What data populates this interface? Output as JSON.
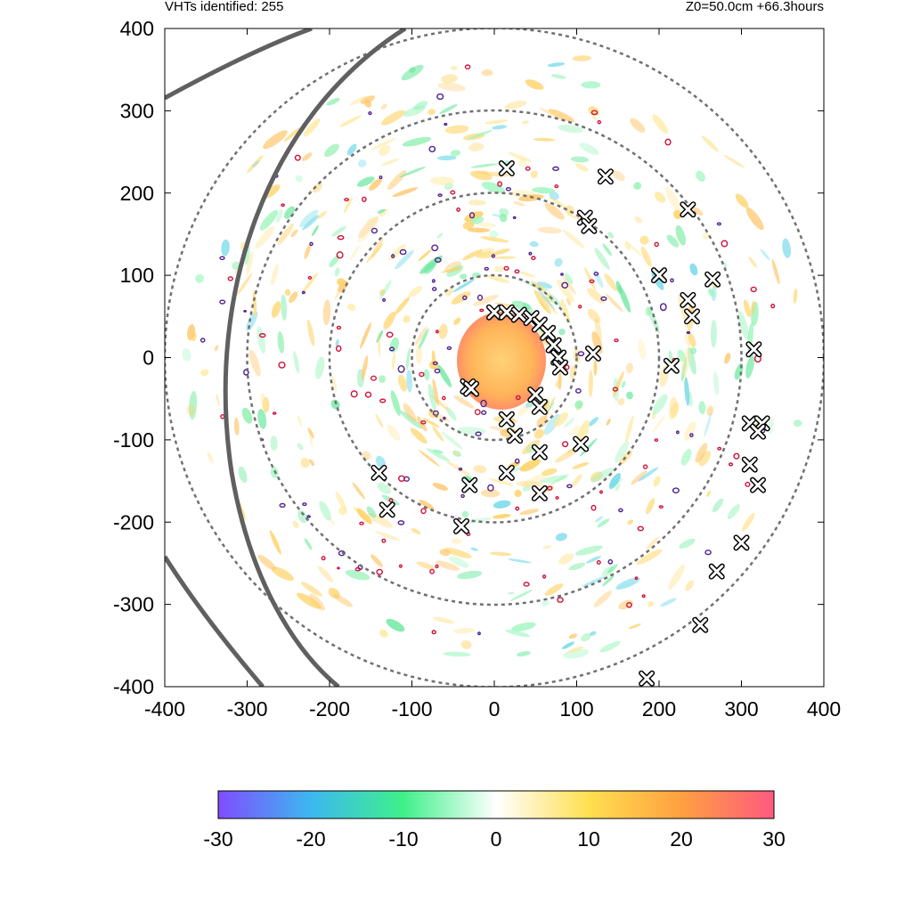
{
  "header": {
    "left_text": "VHTs identified: 255",
    "right_text": "Z0=50.0cm  +66.3hours"
  },
  "chart_data": {
    "type": "scatter",
    "title": "",
    "xlabel": "",
    "ylabel": "",
    "xlim": [
      -400,
      400
    ],
    "ylim": [
      -400,
      400
    ],
    "x_ticks": [
      -400,
      -300,
      -200,
      -100,
      0,
      100,
      200,
      300,
      400
    ],
    "y_ticks": [
      -400,
      -300,
      -200,
      -100,
      0,
      100,
      200,
      300,
      400
    ],
    "x_tick_labels": [
      "-400",
      "-300",
      "-200",
      "-100",
      "0",
      "100",
      "200",
      "300",
      "400"
    ],
    "y_tick_labels": [
      "-400",
      "-300",
      "-200",
      "-100",
      "0",
      "100",
      "200",
      "300",
      "400"
    ],
    "range_rings_radius": [
      100,
      200,
      300,
      400
    ],
    "colorbar": {
      "min": -30,
      "max": 30,
      "ticks": [
        -30,
        -20,
        -10,
        0,
        10,
        20,
        30
      ],
      "tick_labels": [
        "-30",
        "-20",
        "-10",
        "0",
        "10",
        "20",
        "30"
      ],
      "colors": [
        "#7f4dff",
        "#3cb8f0",
        "#3ff08a",
        "#ffffff",
        "#ffdf50",
        "#ffa040",
        "#ff5a80"
      ]
    },
    "vht_markers": [
      [
        -32,
        -35
      ],
      [
        -28,
        -38
      ],
      [
        15,
        -75
      ],
      [
        25,
        -95
      ],
      [
        -30,
        -155
      ],
      [
        15,
        -140
      ],
      [
        55,
        -165
      ],
      [
        105,
        -105
      ],
      [
        120,
        5
      ],
      [
        50,
        -45
      ],
      [
        55,
        -60
      ],
      [
        55,
        -115
      ],
      [
        -140,
        -140
      ],
      [
        -130,
        -185
      ],
      [
        -40,
        -205
      ],
      [
        15,
        230
      ],
      [
        110,
        170
      ],
      [
        115,
        160
      ],
      [
        135,
        220
      ],
      [
        200,
        100
      ],
      [
        235,
        180
      ],
      [
        235,
        70
      ],
      [
        240,
        50
      ],
      [
        215,
        -10
      ],
      [
        265,
        95
      ],
      [
        315,
        10
      ],
      [
        310,
        -80
      ],
      [
        325,
        -80
      ],
      [
        320,
        -90
      ],
      [
        310,
        -130
      ],
      [
        320,
        -155
      ],
      [
        300,
        -225
      ],
      [
        270,
        -260
      ],
      [
        250,
        -325
      ],
      [
        185,
        -390
      ],
      [
        0,
        55
      ],
      [
        15,
        55
      ],
      [
        30,
        52
      ],
      [
        45,
        48
      ],
      [
        55,
        40
      ],
      [
        65,
        30
      ],
      [
        72,
        15
      ],
      [
        78,
        0
      ],
      [
        80,
        -12
      ]
    ]
  }
}
